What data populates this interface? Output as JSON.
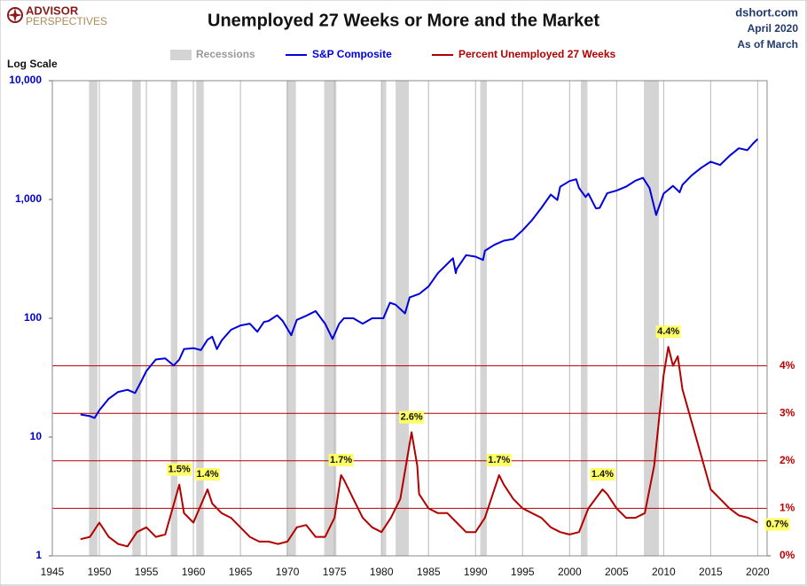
{
  "chart_data": {
    "type": "line",
    "title": "Unemployed 27 Weeks or More and the Market",
    "logo": [
      "ADVISOR",
      "PERSPECTIVES"
    ],
    "source": [
      "dshort.com",
      "April 2020",
      "As of March"
    ],
    "y_label": "Log Scale",
    "xlim": [
      1945,
      2021
    ],
    "xticks": [
      1945,
      1950,
      1955,
      1960,
      1965,
      1970,
      1975,
      1980,
      1985,
      1990,
      1995,
      2000,
      2005,
      2010,
      2015,
      2020
    ],
    "ylim": [
      1,
      10000
    ],
    "log_scale": true,
    "yticks": [
      1,
      10,
      100,
      {
        "value": 1000,
        "label": "1,000"
      },
      {
        "value": 10000,
        "label": "10,000"
      }
    ],
    "y2lim": [
      0,
      10
    ],
    "y2ticks": [
      {
        "value": 0,
        "label": "0%"
      },
      {
        "value": 1,
        "label": "1%"
      },
      {
        "value": 2,
        "label": "2%"
      },
      {
        "value": 3,
        "label": "3%"
      },
      {
        "value": 4,
        "label": "4%"
      }
    ],
    "recessions": {
      "name": "Recessions",
      "color": "#d4d4d4",
      "spans": [
        [
          1948.9,
          1949.8
        ],
        [
          1953.5,
          1954.4
        ],
        [
          1957.6,
          1958.3
        ],
        [
          1960.3,
          1961.1
        ],
        [
          1969.9,
          1970.9
        ],
        [
          1973.9,
          1975.2
        ],
        [
          1980.0,
          1980.5
        ],
        [
          1981.5,
          1982.9
        ],
        [
          1990.5,
          1991.2
        ],
        [
          2001.2,
          2001.9
        ],
        [
          2007.9,
          2009.5
        ]
      ]
    },
    "series": [
      {
        "name": "S&P Composite",
        "color": "#0000dd",
        "axis": "y",
        "x": [
          1948,
          1949,
          1949.5,
          1950,
          1951,
          1952,
          1953,
          1953.8,
          1954.5,
          1955,
          1956,
          1957,
          1957.9,
          1958.5,
          1959,
          1960,
          1960.8,
          1961.5,
          1962,
          1962.5,
          1963,
          1964,
          1965,
          1966,
          1966.8,
          1967.5,
          1968,
          1968.9,
          1969.5,
          1970.4,
          1971,
          1972,
          1973,
          1974,
          1974.8,
          1975.5,
          1976,
          1977,
          1978,
          1979,
          1980.2,
          1980.9,
          1981.5,
          1982.5,
          1983,
          1984,
          1985,
          1986,
          1987.6,
          1987.9,
          1988,
          1989,
          1990,
          1990.8,
          1991,
          1992,
          1993,
          1994,
          1995,
          1996,
          1997,
          1998,
          1998.7,
          1999,
          2000,
          2000.7,
          2001,
          2001.7,
          2002,
          2002.8,
          2003.2,
          2004,
          2005,
          2006,
          2007,
          2007.8,
          2008.5,
          2009.2,
          2010,
          2011,
          2011.7,
          2012,
          2013,
          2014,
          2015,
          2016,
          2017,
          2018,
          2018.9,
          2019.5,
          2020
        ],
        "values": [
          15.5,
          15,
          14.5,
          16.8,
          21,
          24,
          25,
          23.5,
          30,
          36,
          45,
          46,
          40,
          45,
          55,
          56,
          54,
          66,
          70,
          55,
          65,
          80,
          87,
          90,
          77,
          93,
          95,
          106,
          95,
          72,
          97,
          105,
          115,
          90,
          67,
          90,
          100,
          100,
          90,
          100,
          100,
          135,
          130,
          110,
          150,
          160,
          185,
          240,
          320,
          240,
          260,
          340,
          330,
          310,
          370,
          415,
          450,
          465,
          550,
          670,
          850,
          1100,
          990,
          1280,
          1430,
          1480,
          1250,
          1050,
          1120,
          840,
          850,
          1130,
          1190,
          1280,
          1440,
          1520,
          1250,
          740,
          1120,
          1300,
          1150,
          1330,
          1600,
          1850,
          2080,
          1950,
          2330,
          2700,
          2600,
          2950,
          3230
        ]
      },
      {
        "name": "Percent Unemployed 27 Weeks",
        "color": "#b30000",
        "axis": "y2",
        "x": [
          1948,
          1949,
          1950,
          1951,
          1952,
          1953,
          1954,
          1955,
          1956,
          1957,
          1958.5,
          1959,
          1960,
          1961.5,
          1962,
          1963,
          1964,
          1965,
          1966,
          1967,
          1968,
          1969,
          1970,
          1971,
          1972,
          1973,
          1974,
          1975,
          1975.7,
          1976,
          1977,
          1978,
          1979,
          1980,
          1981,
          1982,
          1983.2,
          1983.8,
          1984,
          1985,
          1986,
          1987,
          1988,
          1989,
          1990,
          1991,
          1992.5,
          1993,
          1994,
          1995,
          1996,
          1997,
          1998,
          1999,
          2000,
          2001,
          2002,
          2003.5,
          2004,
          2005,
          2006,
          2007,
          2008,
          2009,
          2010,
          2010.5,
          2011,
          2011.5,
          2012,
          2013,
          2014,
          2015,
          2016,
          2017,
          2018,
          2019,
          2020
        ],
        "values": [
          0.35,
          0.4,
          0.7,
          0.4,
          0.25,
          0.2,
          0.5,
          0.6,
          0.4,
          0.45,
          1.5,
          0.9,
          0.7,
          1.4,
          1.1,
          0.9,
          0.8,
          0.6,
          0.4,
          0.3,
          0.3,
          0.25,
          0.3,
          0.6,
          0.65,
          0.4,
          0.4,
          0.8,
          1.7,
          1.6,
          1.2,
          0.8,
          0.6,
          0.5,
          0.8,
          1.2,
          2.6,
          1.9,
          1.3,
          1.0,
          0.9,
          0.9,
          0.7,
          0.5,
          0.5,
          0.8,
          1.7,
          1.5,
          1.2,
          1.0,
          0.9,
          0.8,
          0.6,
          0.5,
          0.45,
          0.5,
          1.0,
          1.4,
          1.3,
          1.0,
          0.8,
          0.8,
          0.9,
          1.9,
          3.8,
          4.4,
          4.0,
          4.2,
          3.5,
          2.8,
          2.1,
          1.4,
          1.2,
          1.0,
          0.85,
          0.8,
          0.7
        ]
      }
    ],
    "annotations": [
      {
        "x": 1958.5,
        "value": 1.5,
        "label": "1.5%"
      },
      {
        "x": 1961.5,
        "value": 1.4,
        "label": "1.4%"
      },
      {
        "x": 1975.7,
        "value": 1.7,
        "label": "1.7%"
      },
      {
        "x": 1983.2,
        "value": 2.6,
        "label": "2.6%"
      },
      {
        "x": 1992.5,
        "value": 1.7,
        "label": "1.7%"
      },
      {
        "x": 2003.5,
        "value": 1.4,
        "label": "1.4%"
      },
      {
        "x": 2010.5,
        "value": 4.4,
        "label": "4.4%"
      },
      {
        "x": 2020,
        "value": 0.7,
        "label": "0.7%"
      }
    ]
  }
}
